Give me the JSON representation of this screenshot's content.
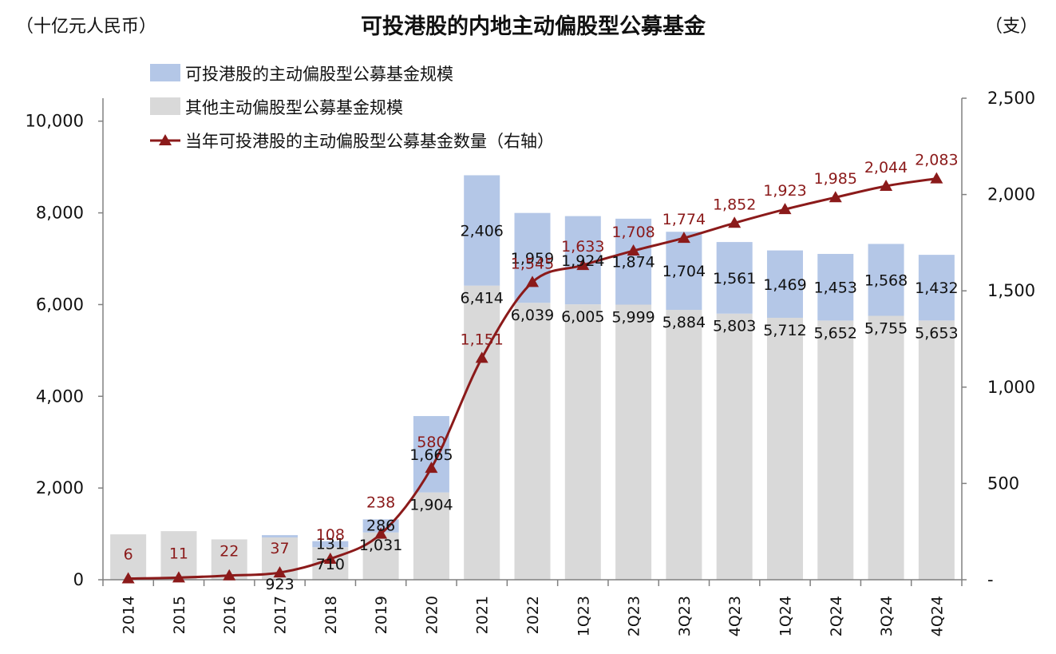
{
  "chart_data": {
    "type": "bar",
    "stacked": true,
    "title": "可投港股的内地主动偏股型公募基金",
    "left_unit": "（十亿元人民币）",
    "right_unit": "（支）",
    "categories": [
      "2014",
      "2015",
      "2016",
      "2017",
      "2018",
      "2019",
      "2020",
      "2021",
      "2022",
      "1Q23",
      "2Q23",
      "3Q23",
      "4Q23",
      "1Q24",
      "2Q24",
      "3Q24",
      "4Q24"
    ],
    "series": [
      {
        "name": "其他主动偏股型公募基金规模",
        "axis": "left",
        "color": "#d9d9d9",
        "values": [
          990,
          1060,
          880,
          923,
          710,
          1031,
          1904,
          6414,
          6039,
          6005,
          5999,
          5884,
          5803,
          5712,
          5652,
          5755,
          5653
        ],
        "labels": [
          "",
          "",
          "",
          "923",
          "710",
          "1,031",
          "1,904",
          "6,414",
          "6,039",
          "6,005",
          "5,999",
          "5,884",
          "5,803",
          "5,712",
          "5,652",
          "5,755",
          "5,653"
        ]
      },
      {
        "name": "可投港股的主动偏股型公募基金规模",
        "axis": "left",
        "color": "#b4c7e7",
        "values": [
          0,
          0,
          0,
          50,
          131,
          286,
          1665,
          2406,
          1959,
          1924,
          1874,
          1704,
          1561,
          1469,
          1453,
          1568,
          1432
        ],
        "labels": [
          "",
          "",
          "",
          "",
          "131",
          "286",
          "1,665",
          "2,406",
          "1,959",
          "1,924",
          "1,874",
          "1,704",
          "1,561",
          "1,469",
          "1,453",
          "1,568",
          "1,432"
        ]
      },
      {
        "name": "当年可投港股的主动偏股型公募基金数量（右轴）",
        "type": "line",
        "axis": "right",
        "color": "#8b1a1a",
        "values": [
          6,
          11,
          22,
          37,
          108,
          238,
          580,
          1151,
          1545,
          1633,
          1708,
          1774,
          1852,
          1923,
          1985,
          2044,
          2083
        ],
        "labels": [
          "6",
          "11",
          "22",
          "37",
          "108",
          "238",
          "580",
          "1,151",
          "1,545",
          "1,633",
          "1,708",
          "1,774",
          "1,852",
          "1,923",
          "1,985",
          "2,044",
          "2,083"
        ]
      }
    ],
    "legend_order": [
      1,
      0,
      2
    ],
    "y_left": {
      "range": [
        0,
        10500
      ],
      "ticks": [
        0,
        2000,
        4000,
        6000,
        8000,
        10000
      ],
      "tick_labels": [
        "0",
        "2,000",
        "4,000",
        "6,000",
        "8,000",
        "10,000"
      ]
    },
    "y_right": {
      "range": [
        0,
        2500
      ],
      "ticks": [
        0,
        500,
        1000,
        1500,
        2000,
        2500
      ],
      "tick_labels": [
        "-",
        "500",
        "1,000",
        "1,500",
        "2,000",
        "2,500"
      ]
    },
    "grid": false,
    "legend_position": "top-left"
  }
}
